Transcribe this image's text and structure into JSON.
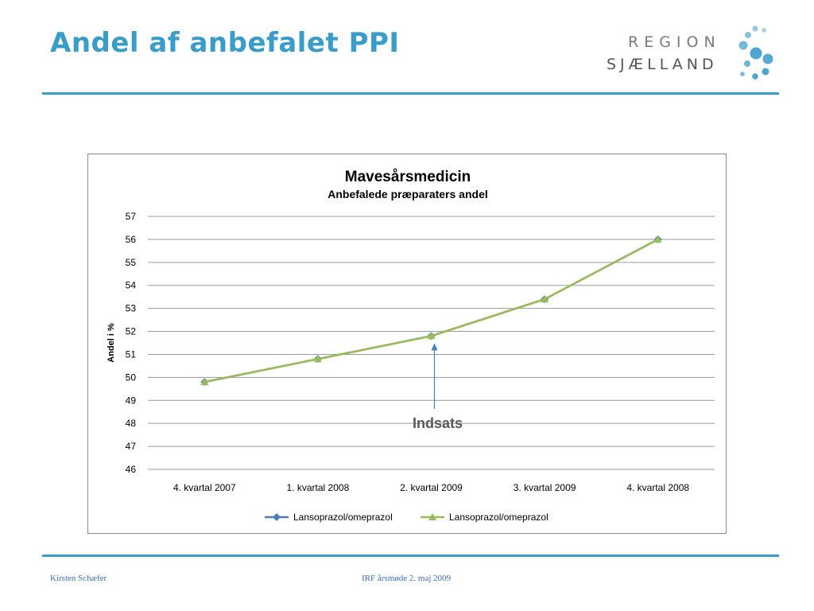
{
  "slide": {
    "title": "Andel af anbefalet PPI",
    "footer_left": "Kirsten Schæfer",
    "footer_center": "IRF årsmøde 2. maj 2009"
  },
  "logo": {
    "line1": "REGION",
    "line2": "SJÆLLAND",
    "dot_color": "#3a9cc8"
  },
  "chart_data": {
    "type": "line",
    "title": "Mavesårsmedicin",
    "subtitle": "Anbefalede præparaters andel",
    "ylabel": "Andel i %",
    "xlabel": "",
    "ylim": [
      46,
      57
    ],
    "yticks": [
      46,
      47,
      48,
      49,
      50,
      51,
      52,
      53,
      54,
      55,
      56,
      57
    ],
    "categories": [
      "4. kvartal 2007",
      "1. kvartal 2008",
      "2. kvartal 2009",
      "3. kvartal 2009",
      "4. kvartal 2008"
    ],
    "grid": true,
    "legend_position": "bottom",
    "series": [
      {
        "name": "Lansoprazol/omeprazol",
        "values": [
          49.8,
          50.8,
          51.8,
          53.4,
          56.0
        ],
        "color": "#4a7ebb",
        "marker": "diamond"
      },
      {
        "name": "Lansoprazol/omeprazol",
        "values": [
          49.8,
          50.8,
          51.8,
          53.4,
          56.0
        ],
        "color": "#9bbb59",
        "marker": "triangle"
      }
    ],
    "annotation": {
      "text": "Indsats",
      "category_index": 2
    }
  }
}
